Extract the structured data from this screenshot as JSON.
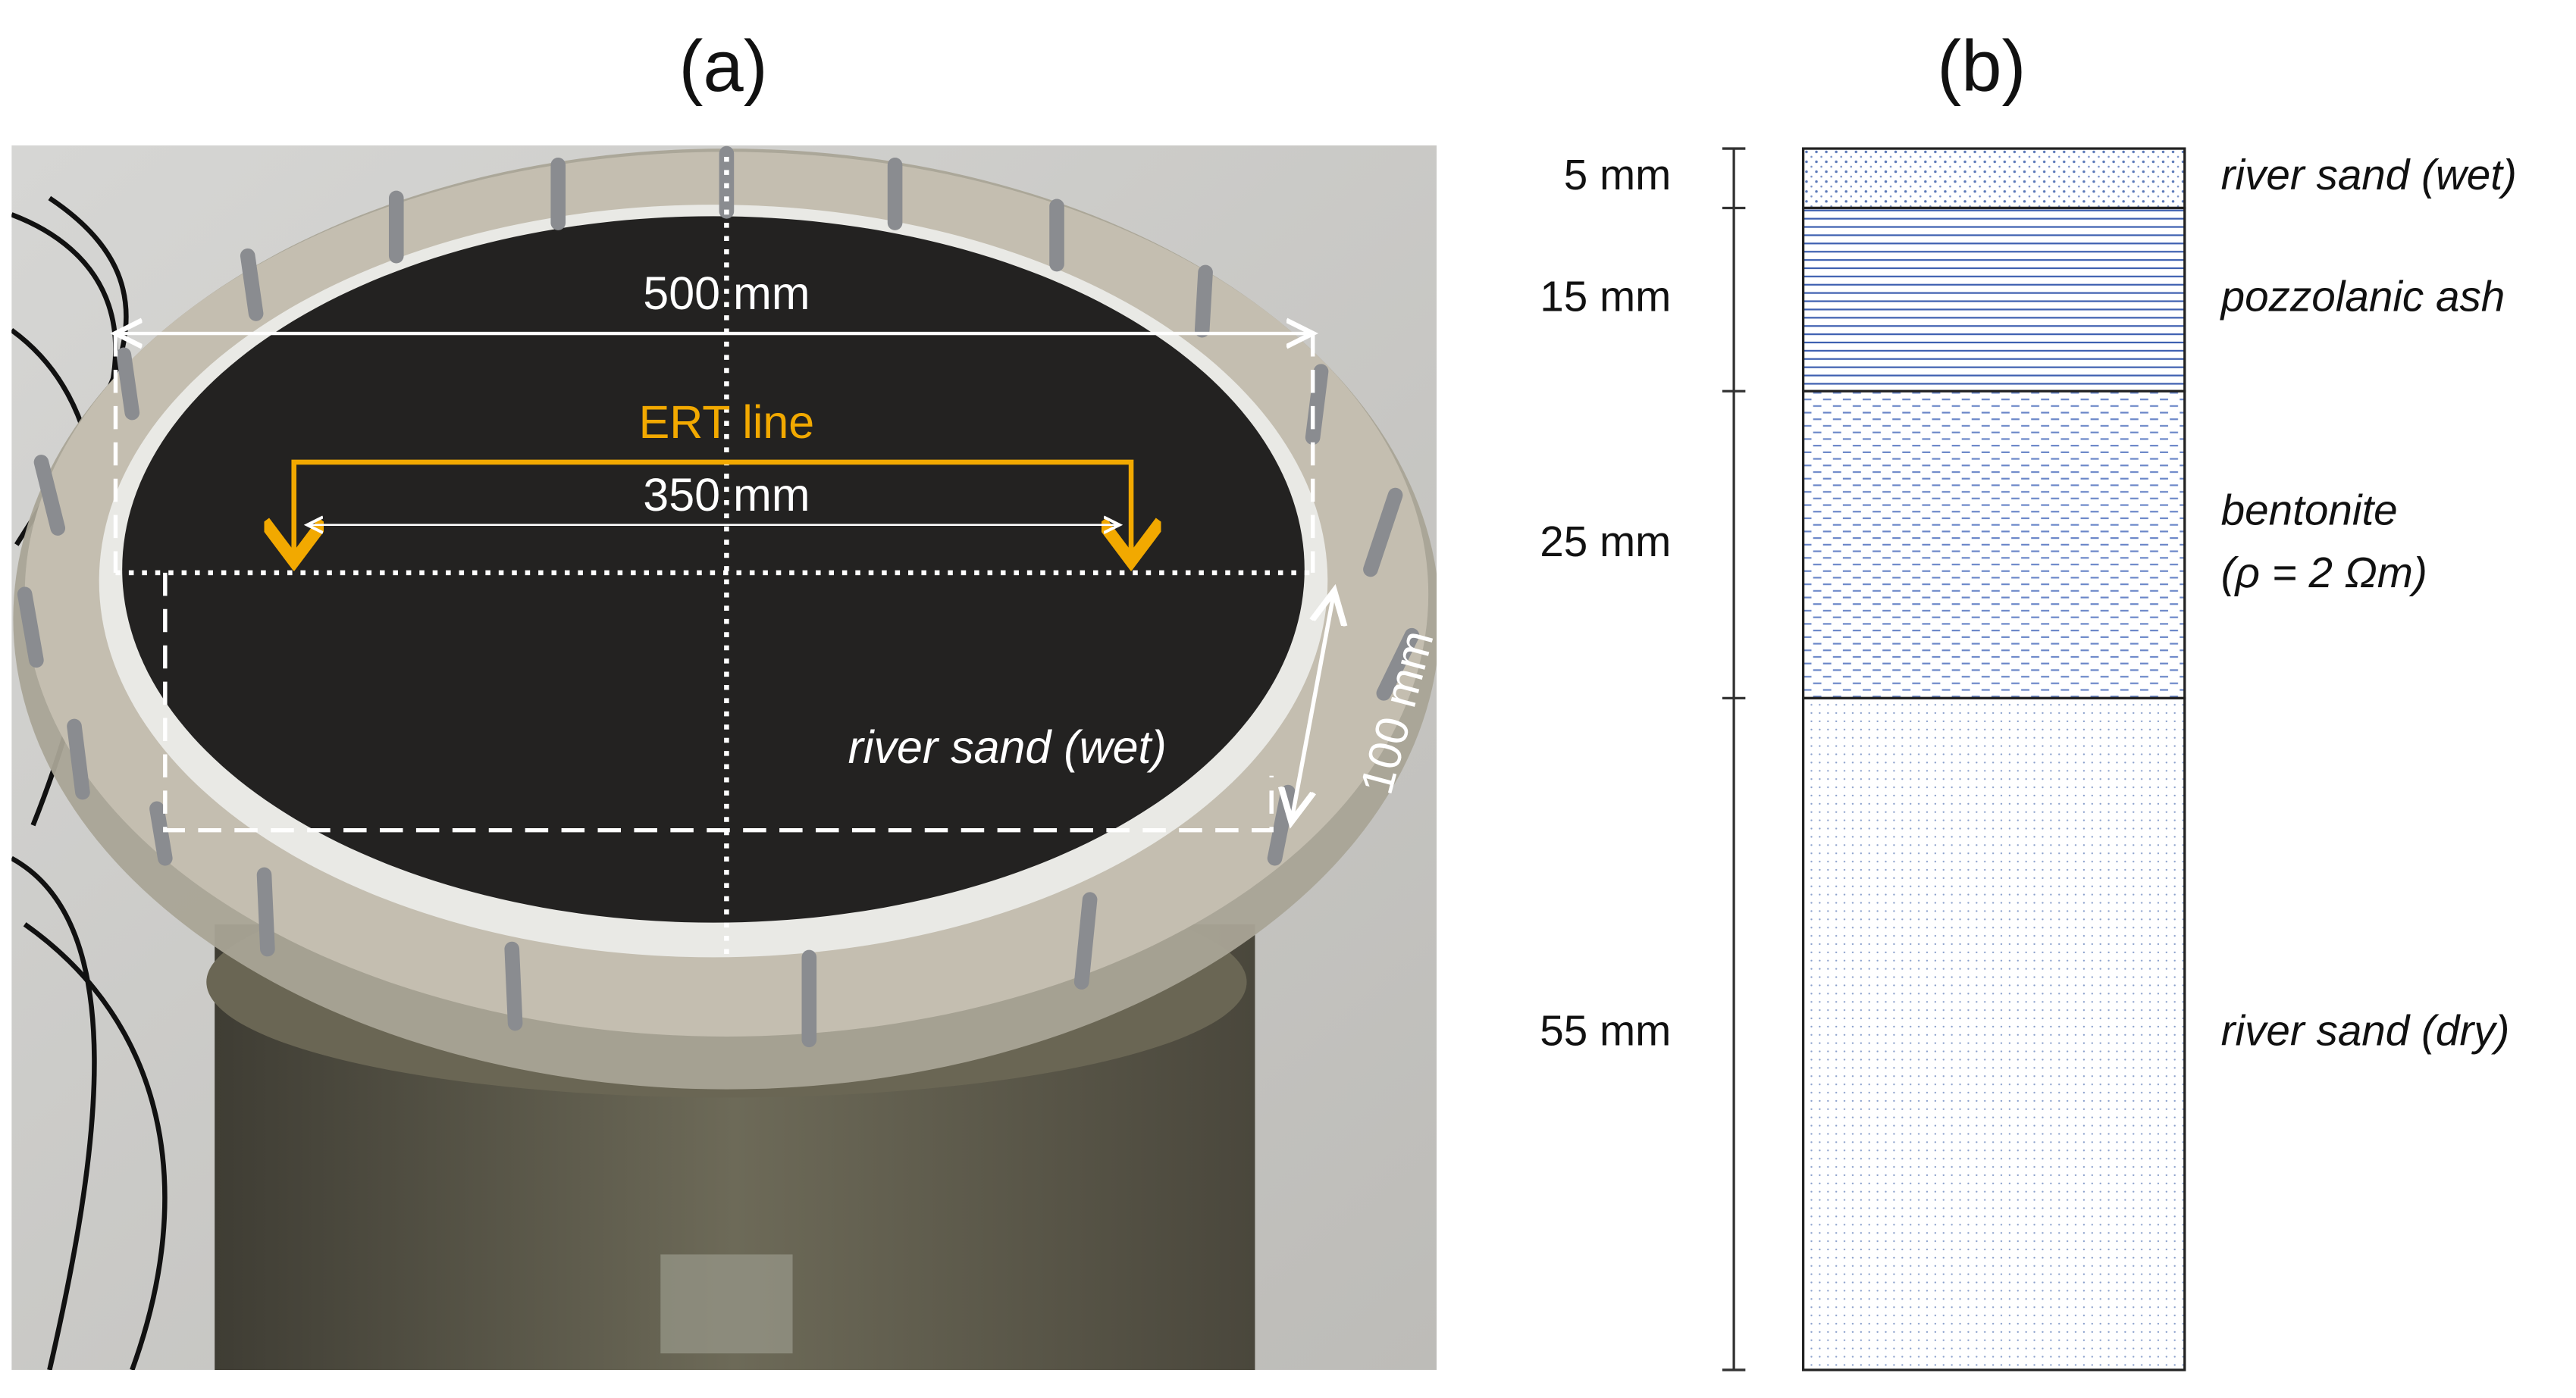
{
  "panels": {
    "a": {
      "label": "(a)",
      "annotations": {
        "width": "500 mm",
        "ert": "ERT line",
        "ert_length": "350 mm",
        "surface": "river sand (wet)",
        "depth": "100 mm"
      }
    },
    "b": {
      "label": "(b)",
      "layers": [
        {
          "thickness": "5 mm",
          "label_lines": [
            "river sand (wet)"
          ]
        },
        {
          "thickness": "15 mm",
          "label_lines": [
            "pozzolanic ash"
          ]
        },
        {
          "thickness": "25 mm",
          "label_lines": [
            "bentonite",
            "(ρ = 2 Ωm)"
          ]
        },
        {
          "thickness": "55 mm",
          "label_lines": [
            "river sand (dry)"
          ]
        }
      ]
    }
  }
}
